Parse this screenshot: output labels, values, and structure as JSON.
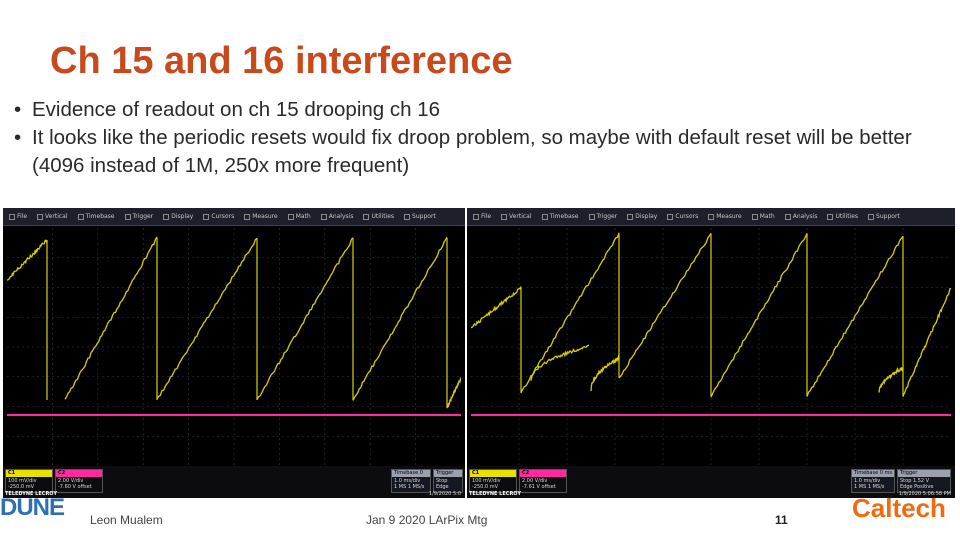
{
  "slide": {
    "title": "Ch 15 and 16 interference",
    "bullets": [
      "Evidence of readout on ch 15 drooping ch 16",
      "It looks like the periodic resets would fix droop problem, so maybe with default reset will be better (4096 instead of 1M, 250x more frequent)"
    ],
    "bullet_symbol": "•"
  },
  "scope_menu": [
    "File",
    "Vertical",
    "Timebase",
    "Trigger",
    "Display",
    "Cursors",
    "Measure",
    "Math",
    "Analysis",
    "Utilities",
    "Support"
  ],
  "scopes": {
    "left": {
      "c1": {
        "label": "C1",
        "lines": [
          "100 mV/div",
          "-250.0 mV"
        ]
      },
      "c2": {
        "label": "C2",
        "lines": [
          "2.00 V/div",
          "-7.60 V offset"
        ]
      },
      "timebase": {
        "label": "Timebase",
        "value": "0 ms",
        "lines": [
          "1.0 ms/div",
          "1 MS  1 MS/s"
        ]
      },
      "trigger": {
        "label": "Trigger",
        "lines": [
          "Stop",
          "Edge"
        ]
      },
      "brand": "TELEDYNE LECROY",
      "stamp": "1/9/2020 5:0"
    },
    "right": {
      "c1": {
        "label": "C1",
        "lines": [
          "100 mV/div",
          "-250.0 mV"
        ]
      },
      "c2": {
        "label": "C2",
        "lines": [
          "2.00 V/div",
          "-7.61 V offset"
        ]
      },
      "timebase": {
        "label": "Timebase",
        "value": "0 ms",
        "lines": [
          "1.0 ms/div",
          "1 MS  1 MS/s"
        ]
      },
      "trigger": {
        "label": "Trigger",
        "lines": [
          "Stop 1.52 V",
          "Edge Positive"
        ]
      },
      "brand": "TELEDYNE LECROY",
      "stamp": "1/9/2020 5:06:58 PM"
    }
  },
  "colors": {
    "title": "#c8491b",
    "ch1_trace": "#d8d000",
    "ch2_trace": "#ff2aa0",
    "grid": "#3a3a3a"
  },
  "footer": {
    "author": "Leon Mualem",
    "meeting": "Jan 9 2020 LArPix Mtg",
    "page_number": "11"
  },
  "logos": {
    "left": "DUNE",
    "right": "Caltech"
  }
}
